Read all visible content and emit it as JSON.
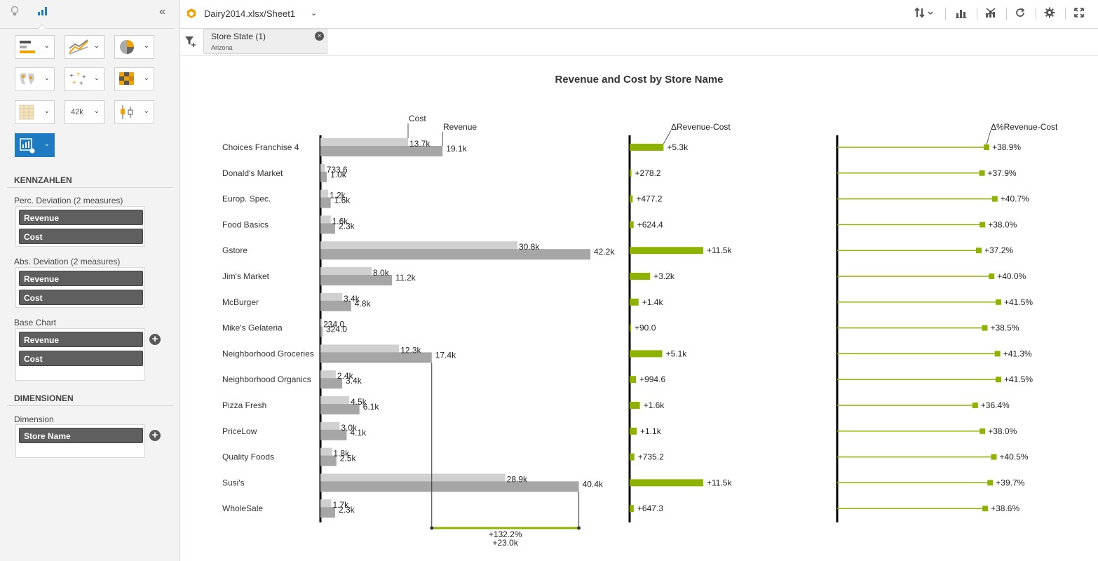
{
  "sidebar": {
    "sections": {
      "kennzahlen": "KENNZAHLEN",
      "dimensionen": "DIMENSIONEN"
    },
    "groups": [
      {
        "label": "Perc. Deviation (2 measures)",
        "pills": [
          "Revenue",
          "Cost"
        ]
      },
      {
        "label": "Abs. Deviation (2 measures)",
        "pills": [
          "Revenue",
          "Cost"
        ]
      },
      {
        "label": "Base Chart",
        "pills": [
          "Revenue",
          "Cost"
        ]
      }
    ],
    "dimension": {
      "label": "Dimension",
      "pills": [
        "Store Name"
      ]
    },
    "chart_type_icons": [
      "bar-chart-icon",
      "line-chart-icon",
      "pie-chart-icon",
      "map-chart-icon",
      "scatter-chart-icon",
      "heatmap-icon",
      "table-icon",
      "kpi-number-icon",
      "boxplot-icon",
      "custom-chart-settings-icon"
    ],
    "kpi_icon_text": "42k"
  },
  "topbar": {
    "file_title": "Dairy2014.xlsx/Sheet1"
  },
  "filter": {
    "chip_title": "Store State (1)",
    "chip_value": "Arizona"
  },
  "colors": {
    "accent": "#1f7bc1",
    "positive": "#8db300",
    "cost_bar": "#d0d0d0",
    "revenue_bar": "#a6a6a6"
  },
  "chart_data": {
    "type": "bar",
    "title": "Revenue and Cost by Store Name",
    "categories": [
      "Choices Franchise 4",
      "Donald's Market",
      "Europ. Spec.",
      "Food Basics",
      "Gstore",
      "Jim's Market",
      "McBurger",
      "Mike's Gelateria",
      "Neighborhood Groceries",
      "Neighborhood Organics",
      "Pizza Fresh",
      "PriceLow",
      "Quality Foods",
      "Susi's",
      "WholeSale"
    ],
    "series": [
      {
        "name": "Cost",
        "values": [
          13700,
          733.6,
          1200,
          1600,
          30800,
          8000,
          3400,
          234.0,
          12300,
          2400,
          4500,
          3000,
          1800,
          28900,
          1700
        ],
        "labels": [
          "13.7k",
          "733.6",
          "1.2k",
          "1.6k",
          "30.8k",
          "8.0k",
          "3.4k",
          "234.0",
          "12.3k",
          "2.4k",
          "4.5k",
          "3.0k",
          "1.8k",
          "28.9k",
          "1.7k"
        ]
      },
      {
        "name": "Revenue",
        "values": [
          19100,
          1000,
          1600,
          2300,
          42200,
          11200,
          4800,
          324.0,
          17400,
          3400,
          6100,
          4100,
          2500,
          40400,
          2300
        ],
        "labels": [
          "19.1k",
          "1.0k",
          "1.6k",
          "2.3k",
          "42.2k",
          "11.2k",
          "4.8k",
          "324.0",
          "17.4k",
          "3.4k",
          "6.1k",
          "4.1k",
          "2.5k",
          "40.4k",
          "2.3k"
        ]
      }
    ],
    "abs_deviation": {
      "name": "ΔRevenue-Cost",
      "values": [
        5300,
        278.2,
        477.2,
        624.4,
        11500,
        3200,
        1400,
        90.0,
        5100,
        994.6,
        1600,
        1100,
        735.2,
        11500,
        647.3
      ],
      "labels": [
        "+5.3k",
        "+278.2",
        "+477.2",
        "+624.4",
        "+11.5k",
        "+3.2k",
        "+1.4k",
        "+90.0",
        "+5.1k",
        "+994.6",
        "+1.6k",
        "+1.1k",
        "+735.2",
        "+11.5k",
        "+647.3"
      ]
    },
    "perc_deviation": {
      "name": "Δ%Revenue-Cost",
      "values": [
        38.9,
        37.9,
        40.7,
        38.0,
        37.2,
        40.0,
        41.5,
        38.5,
        41.3,
        41.5,
        36.4,
        38.0,
        40.5,
        39.7,
        38.6
      ],
      "labels": [
        "+38.9%",
        "+37.9%",
        "+40.7%",
        "+38.0%",
        "+37.2%",
        "+40.0%",
        "+41.5%",
        "+38.5%",
        "+41.3%",
        "+41.5%",
        "+36.4%",
        "+38.0%",
        "+40.5%",
        "+39.7%",
        "+38.6%"
      ]
    },
    "comparison": {
      "from_category": "Neighborhood Groceries",
      "to_category": "Susi's",
      "percent_label": "+132.2%",
      "abs_label": "+23.0k"
    }
  }
}
